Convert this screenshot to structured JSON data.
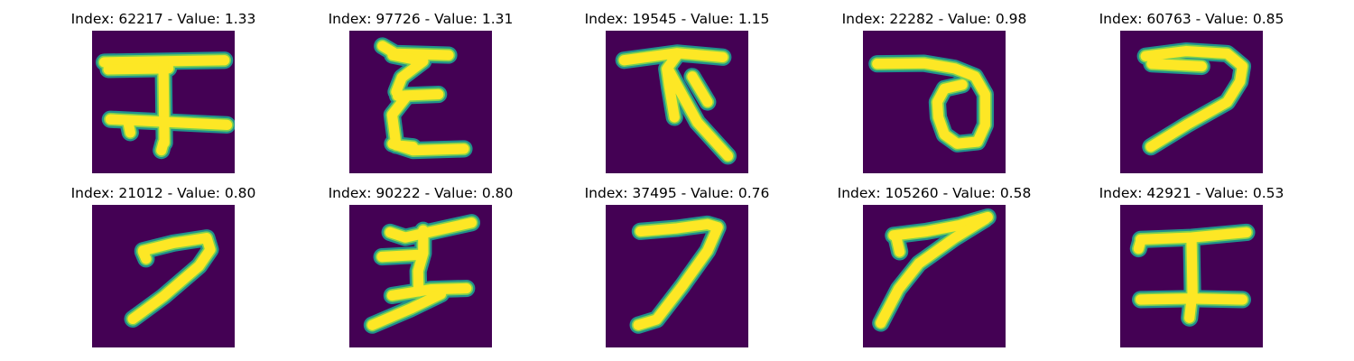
{
  "figure": {
    "panels": [
      {
        "title": "Index: 62217 - Value: 1.33",
        "glyph": "character-a"
      },
      {
        "title": "Index: 97726 - Value: 1.31",
        "glyph": "character-b"
      },
      {
        "title": "Index: 19545 - Value: 1.15",
        "glyph": "character-c"
      },
      {
        "title": "Index: 22282 - Value: 0.98",
        "glyph": "character-d"
      },
      {
        "title": "Index: 60763 - Value: 0.85",
        "glyph": "character-e"
      },
      {
        "title": "Index: 21012 - Value: 0.80",
        "glyph": "character-f"
      },
      {
        "title": "Index: 90222 - Value: 0.80",
        "glyph": "character-g"
      },
      {
        "title": "Index: 37495 - Value: 0.76",
        "glyph": "character-h"
      },
      {
        "title": "Index: 105260 - Value: 0.58",
        "glyph": "character-i"
      },
      {
        "title": "Index: 42921 - Value: 0.53",
        "glyph": "character-j"
      }
    ]
  },
  "colors": {
    "background": "#440154",
    "stroke_core": "#fde725",
    "stroke_edge": "#21918c",
    "stroke_mid": "#7ad151"
  }
}
